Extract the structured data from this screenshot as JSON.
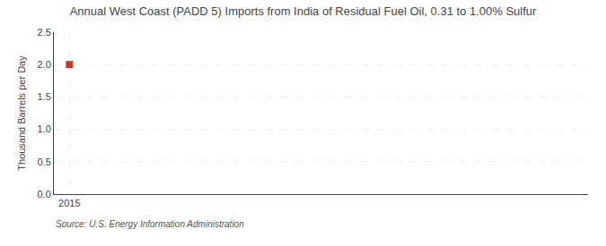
{
  "chart_data": {
    "type": "scatter",
    "title": "Annual West Coast (PADD 5) Imports from India of Residual Fuel Oil, 0.31 to 1.00% Sulfur",
    "y_label": "Thousand Barrels per Day",
    "annotations": [
      "Source: U.S. Energy Information Administration"
    ],
    "x": [
      2015
    ],
    "values": [
      2.0
    ],
    "color": "#c0392b",
    "marker": "square",
    "xlim": [
      2014.7,
      2025.0
    ],
    "xticks": [
      2015
    ],
    "ylim": [
      0.0,
      2.5
    ],
    "yticks": [
      {
        "value": 0.0,
        "label": "0.0"
      },
      0.5,
      {
        "value": 1.0,
        "label": "1.0"
      },
      1.5,
      {
        "value": 2.0,
        "label": "2.0"
      },
      2.5
    ],
    "grid": true
  }
}
